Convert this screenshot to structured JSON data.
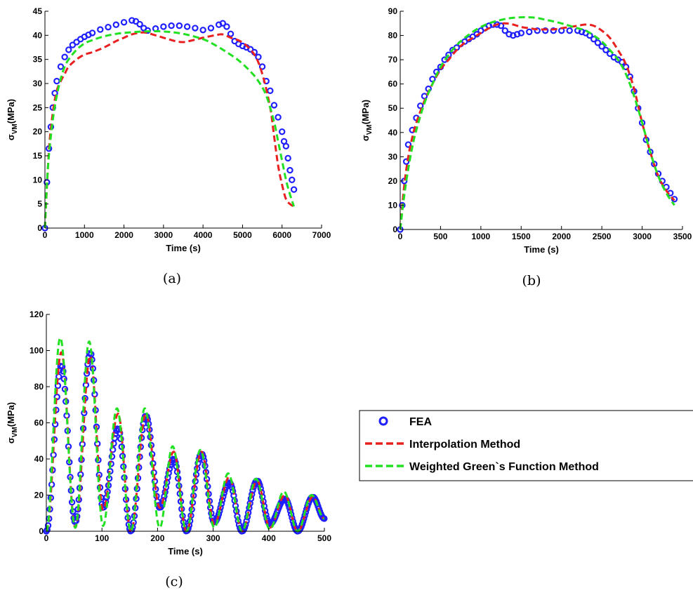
{
  "legend": {
    "entries": [
      "FEA",
      "Interpolation Method",
      "Weighted Green`s Function Method"
    ],
    "colors": [
      "#1f1fff",
      "#e8201f",
      "#22e022"
    ]
  },
  "chart_data": [
    {
      "type": "line",
      "caption": "(a)",
      "xlabel": "Time (s)",
      "ylabel": "σVM (MPa)",
      "xlim": [
        0,
        7000
      ],
      "ylim": [
        0,
        45
      ],
      "xticks": [
        0,
        1000,
        2000,
        3000,
        4000,
        5000,
        6000,
        7000
      ],
      "yticks": [
        0,
        5,
        10,
        15,
        20,
        25,
        30,
        35,
        40,
        45
      ],
      "series": [
        {
          "name": "FEA",
          "style": "markers",
          "color": "#1f1fff",
          "x": [
            0,
            50,
            100,
            150,
            200,
            250,
            300,
            400,
            500,
            600,
            700,
            800,
            900,
            1000,
            1100,
            1200,
            1400,
            1600,
            1800,
            2000,
            2200,
            2300,
            2400,
            2500,
            2600,
            2800,
            3000,
            3200,
            3400,
            3600,
            3800,
            4000,
            4200,
            4400,
            4500,
            4600,
            4700,
            4800,
            4900,
            5000,
            5100,
            5200,
            5300,
            5400,
            5500,
            5600,
            5700,
            5800,
            5900,
            6000,
            6050,
            6100,
            6150,
            6200,
            6250,
            6300
          ],
          "y": [
            0,
            9.5,
            16.5,
            21,
            25,
            28,
            30.5,
            33.5,
            35.5,
            37,
            38,
            38.6,
            39.2,
            39.7,
            40.1,
            40.5,
            41.2,
            41.7,
            42.2,
            42.7,
            43.1,
            42.9,
            42.3,
            41.5,
            41.0,
            41.4,
            41.8,
            42.0,
            42.0,
            41.8,
            41.5,
            41.1,
            41.5,
            42.2,
            42.5,
            41.8,
            40.3,
            38.8,
            38.2,
            37.8,
            37.5,
            37.1,
            36.5,
            35.5,
            33.5,
            30.5,
            28.5,
            25.5,
            23,
            20,
            18,
            17,
            14.5,
            12,
            10,
            8
          ]
        },
        {
          "name": "Interpolation Method",
          "style": "dash",
          "color": "#e8201f",
          "x": [
            0,
            100,
            200,
            300,
            400,
            500,
            600,
            800,
            1000,
            1200,
            1500,
            1800,
            2000,
            2200,
            2500,
            2800,
            3000,
            3300,
            3500,
            3700,
            4000,
            4300,
            4500,
            4700,
            5000,
            5300,
            5500,
            5700,
            5800,
            5900,
            6000,
            6100,
            6200,
            6300
          ],
          "y": [
            0,
            16,
            24,
            28.5,
            30.5,
            32,
            33.5,
            35,
            36,
            36.5,
            37.5,
            38.8,
            39.5,
            40.2,
            40.6,
            40,
            39.5,
            38.8,
            38.6,
            38.9,
            39.5,
            40,
            40.2,
            39.5,
            38.5,
            36,
            32,
            25,
            19,
            13,
            9,
            6,
            5,
            4.5
          ]
        },
        {
          "name": "Weighted Green`s Function Method",
          "style": "dash",
          "color": "#22e022",
          "x": [
            0,
            50,
            100,
            200,
            300,
            400,
            500,
            600,
            800,
            1000,
            1200,
            1500,
            1800,
            2000,
            2500,
            3000,
            3500,
            4000,
            4300,
            4600,
            4900,
            5200,
            5400,
            5600,
            5800,
            5900,
            6000,
            6100,
            6200,
            6300
          ],
          "y": [
            0,
            9,
            15,
            22.5,
            27.5,
            31,
            33.5,
            35,
            37,
            38.3,
            39,
            39.8,
            40.3,
            40.5,
            40.8,
            40.8,
            40.3,
            39.2,
            38,
            36.5,
            34.8,
            32.5,
            30.5,
            27.5,
            22,
            18,
            14,
            10,
            7,
            4.5
          ]
        }
      ]
    },
    {
      "type": "line",
      "caption": "(b)",
      "xlabel": "Time (s)",
      "ylabel": "σVM (MPa)",
      "xlim": [
        0,
        3500
      ],
      "ylim": [
        0,
        90
      ],
      "xticks": [
        0,
        500,
        1000,
        1500,
        2000,
        2500,
        3000,
        3500
      ],
      "yticks": [
        0,
        10,
        20,
        30,
        40,
        50,
        60,
        70,
        80,
        90
      ],
      "series": [
        {
          "name": "FEA",
          "style": "markers",
          "color": "#1f1fff",
          "x": [
            0,
            25,
            50,
            75,
            100,
            150,
            200,
            250,
            300,
            350,
            400,
            450,
            500,
            550,
            600,
            650,
            700,
            750,
            800,
            850,
            900,
            950,
            1000,
            1050,
            1100,
            1150,
            1200,
            1250,
            1300,
            1350,
            1400,
            1450,
            1500,
            1600,
            1700,
            1800,
            1900,
            2000,
            2100,
            2200,
            2250,
            2300,
            2350,
            2400,
            2450,
            2500,
            2550,
            2600,
            2650,
            2700,
            2750,
            2800,
            2850,
            2900,
            2950,
            3000,
            3050,
            3100,
            3150,
            3200,
            3250,
            3300,
            3350,
            3400
          ],
          "y": [
            0,
            10,
            20,
            28,
            35,
            41,
            46,
            51,
            55,
            58,
            62,
            65,
            67,
            70,
            72,
            74,
            75,
            76.5,
            77.5,
            78.5,
            79.5,
            80.5,
            82,
            83,
            84,
            84.5,
            84.5,
            84,
            82,
            80.5,
            80,
            80.5,
            81,
            81.5,
            82,
            82,
            82,
            82,
            82,
            82,
            81.5,
            81,
            80,
            78.5,
            77,
            75.5,
            74,
            72.5,
            71,
            70,
            69,
            67,
            63,
            57,
            50,
            44,
            37,
            32,
            27,
            23,
            20,
            17.5,
            15,
            12.5
          ]
        },
        {
          "name": "Interpolation Method",
          "style": "dash",
          "color": "#e8201f",
          "x": [
            0,
            50,
            100,
            150,
            200,
            300,
            400,
            500,
            600,
            700,
            800,
            900,
            1000,
            1100,
            1200,
            1300,
            1400,
            1500,
            1600,
            1700,
            1800,
            1900,
            2000,
            2100,
            2200,
            2300,
            2400,
            2500,
            2600,
            2700,
            2800,
            2900,
            3000,
            3100,
            3200,
            3300,
            3400
          ],
          "y": [
            0,
            18,
            30,
            38,
            44,
            53,
            60,
            66,
            70,
            74,
            77,
            79,
            81,
            83,
            84.5,
            85,
            84.5,
            83.5,
            83,
            82.5,
            82.5,
            82.5,
            83,
            83.5,
            84,
            84.5,
            84,
            82,
            79,
            74,
            68,
            58,
            44,
            32,
            22,
            16,
            12
          ]
        },
        {
          "name": "Weighted Green`s Function Method",
          "style": "dash",
          "color": "#22e022",
          "x": [
            0,
            50,
            100,
            150,
            200,
            300,
            400,
            500,
            600,
            700,
            800,
            900,
            1000,
            1100,
            1200,
            1300,
            1400,
            1500,
            1600,
            1700,
            1800,
            1900,
            2000,
            2100,
            2200,
            2300,
            2400,
            2500,
            2600,
            2700,
            2800,
            2900,
            3000,
            3100,
            3200,
            3300,
            3400
          ],
          "y": [
            0,
            14,
            25,
            34,
            41,
            52,
            60,
            67,
            72,
            76,
            79,
            81.5,
            83.5,
            85,
            86,
            86.8,
            87.3,
            87.5,
            87.5,
            87.2,
            86.5,
            85.8,
            85,
            84,
            83,
            82,
            80,
            77.5,
            74,
            70,
            64,
            55,
            44,
            32,
            22,
            15,
            10
          ]
        }
      ]
    },
    {
      "type": "line",
      "caption": "(c)",
      "xlabel": "Time (s)",
      "ylabel": "σVM (MPa)",
      "xlim": [
        0,
        500
      ],
      "ylim": [
        0,
        120
      ],
      "xticks": [
        0,
        100,
        200,
        300,
        400,
        500
      ],
      "yticks": [
        0,
        20,
        40,
        60,
        80,
        100,
        120
      ],
      "series": [
        {
          "name": "FEA",
          "style": "markers",
          "color": "#1f1fff",
          "troughs": [
            [
              0,
              0
            ],
            [
              52,
              5
            ],
            [
              102,
              13
            ],
            [
              152,
              0
            ],
            [
              204,
              13
            ],
            [
              252,
              0
            ],
            [
              302,
              5
            ],
            [
              352,
              0
            ],
            [
              402,
              4
            ],
            [
              452,
              0
            ]
          ],
          "peaks": [
            [
              27,
              92
            ],
            [
              79,
              99
            ],
            [
              129,
              57
            ],
            [
              179,
              64
            ],
            [
              229,
              40
            ],
            [
              279,
              43
            ],
            [
              329,
              27
            ],
            [
              379,
              28
            ],
            [
              429,
              18
            ],
            [
              479,
              19
            ]
          ],
          "end": [
            500,
            7
          ]
        },
        {
          "name": "Interpolation Method",
          "style": "dash",
          "color": "#e8201f",
          "troughs": [
            [
              0,
              0
            ],
            [
              52,
              2
            ],
            [
              102,
              12
            ],
            [
              152,
              0
            ],
            [
              204,
              13
            ],
            [
              252,
              0
            ],
            [
              302,
              4
            ],
            [
              352,
              0
            ],
            [
              402,
              2
            ],
            [
              452,
              0
            ]
          ],
          "peaks": [
            [
              27,
              99
            ],
            [
              79,
              97
            ],
            [
              129,
              65
            ],
            [
              179,
              65
            ],
            [
              229,
              44
            ],
            [
              279,
              44
            ],
            [
              329,
              30
            ],
            [
              379,
              28
            ],
            [
              429,
              20
            ],
            [
              479,
              19
            ]
          ],
          "end": [
            500,
            7
          ]
        },
        {
          "name": "Weighted Green`s Function Method",
          "style": "dash",
          "color": "#22e022",
          "troughs": [
            [
              0,
              0
            ],
            [
              52,
              2
            ],
            [
              102,
              3
            ],
            [
              152,
              0
            ],
            [
              204,
              2
            ],
            [
              252,
              0
            ],
            [
              302,
              2
            ],
            [
              352,
              0
            ],
            [
              402,
              1
            ],
            [
              452,
              0
            ]
          ],
          "peaks": [
            [
              25,
              107
            ],
            [
              77,
              105
            ],
            [
              127,
              68
            ],
            [
              177,
              68
            ],
            [
              227,
              47
            ],
            [
              277,
              45
            ],
            [
              327,
              32
            ],
            [
              377,
              29
            ],
            [
              427,
              22
            ],
            [
              477,
              20
            ]
          ],
          "end": [
            500,
            7
          ]
        }
      ]
    }
  ]
}
